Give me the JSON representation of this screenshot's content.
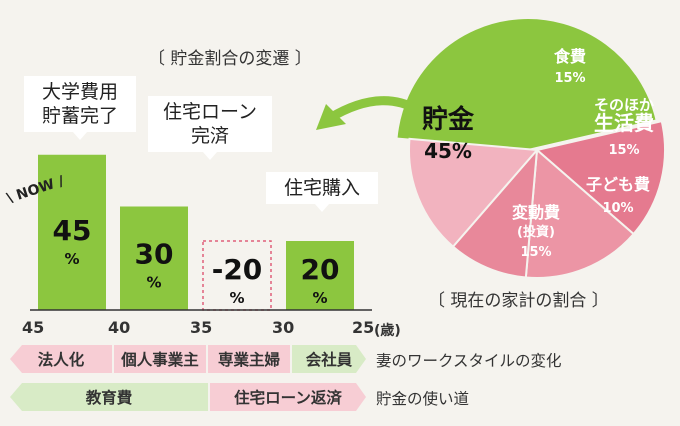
{
  "colors": {
    "green": "#8cc63f",
    "pink_dark": "#e57a8f",
    "pink_mid": "#ec95a5",
    "pink_light": "#f2b3bf",
    "strip_pink": "#f7cdd4",
    "strip_green": "#d8ebc6",
    "background": "#f5f3ee"
  },
  "chart_data": [
    {
      "type": "bar",
      "title": "〔 貯金割合の変遷 〕",
      "categories": [
        "45",
        "40",
        "35",
        "30"
      ],
      "axis_end_label": "25",
      "axis_unit": "(歳)",
      "now_marker": "\\ NOW /",
      "values": [
        45,
        30,
        -20,
        20
      ],
      "value_labels": [
        "45",
        "30",
        "-20",
        "20"
      ],
      "value_unit": "%",
      "negative_style": "dashed-outline",
      "annotations": [
        {
          "text": [
            "大学費用",
            "貯蓄完了"
          ],
          "at": "45"
        },
        {
          "text": [
            "住宅ローン",
            "完済"
          ],
          "at": "40"
        },
        {
          "text": [
            "住宅購入"
          ],
          "at": "30"
        }
      ]
    },
    {
      "type": "pie",
      "title": "〔 現在の家計の割合 〕",
      "slices": [
        {
          "label": "貯金",
          "value": 45,
          "color": "#8cc63f"
        },
        {
          "label": "食費",
          "value": 15,
          "color": "#e57a8f"
        },
        {
          "label": "そのほか生活費",
          "label_lines": [
            "そのほか",
            "生活費"
          ],
          "value": 15,
          "color": "#ec95a5"
        },
        {
          "label": "子ども費",
          "value": 10,
          "color": "#e8889a"
        },
        {
          "label": "変動費(投資)",
          "label_lines": [
            "変動費",
            "(投資)"
          ],
          "value": 15,
          "color": "#f2b3bf"
        }
      ],
      "value_suffix": "%"
    }
  ],
  "strips": {
    "work": {
      "label": "妻のワークスタイルの変化",
      "segments": [
        "法人化",
        "個人事業主",
        "専業主婦",
        "会社員"
      ]
    },
    "usage": {
      "label": "貯金の使い道",
      "segments": [
        "教育費",
        "住宅ローン返済"
      ]
    }
  }
}
